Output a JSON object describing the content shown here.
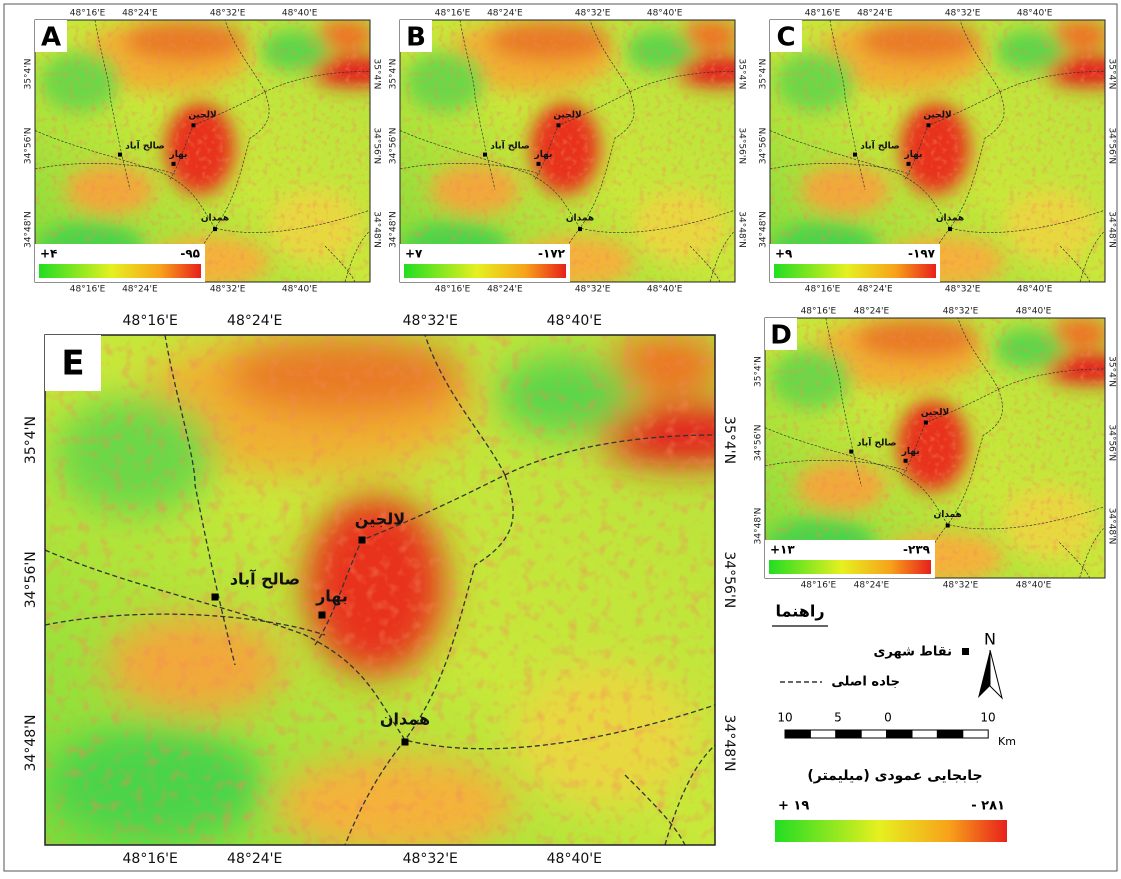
{
  "panels": [
    {
      "letter": "A",
      "min_label": "+۴",
      "max_label": "-۹۵"
    },
    {
      "letter": "B",
      "min_label": "+۷",
      "max_label": "-۱۷۲"
    },
    {
      "letter": "C",
      "min_label": "+۹",
      "max_label": "-۱۹۷"
    },
    {
      "letter": "D",
      "min_label": "+۱۳",
      "max_label": "-۲۳۹"
    },
    {
      "letter": "E"
    }
  ],
  "graticule": {
    "x": [
      "48°16'E",
      "48°24'E",
      "48°32'E",
      "48°40'E"
    ],
    "y": [
      "35°4'N",
      "34°56'N",
      "34°48'N"
    ]
  },
  "cities": [
    "لالجین",
    "صالح آباد",
    "بهار",
    "همدان"
  ],
  "legend": {
    "title": "راهنما",
    "items": [
      "نقاط شهری",
      "جاده اصلی"
    ],
    "north": "N",
    "scale": [
      "10",
      "5",
      "0",
      "10"
    ],
    "unit": "Km",
    "colorbar_title": "جابجایی عمودی (میلیمتر)",
    "colorbar_min": "+ ۱۹",
    "colorbar_max": "- ۲۸۱"
  }
}
